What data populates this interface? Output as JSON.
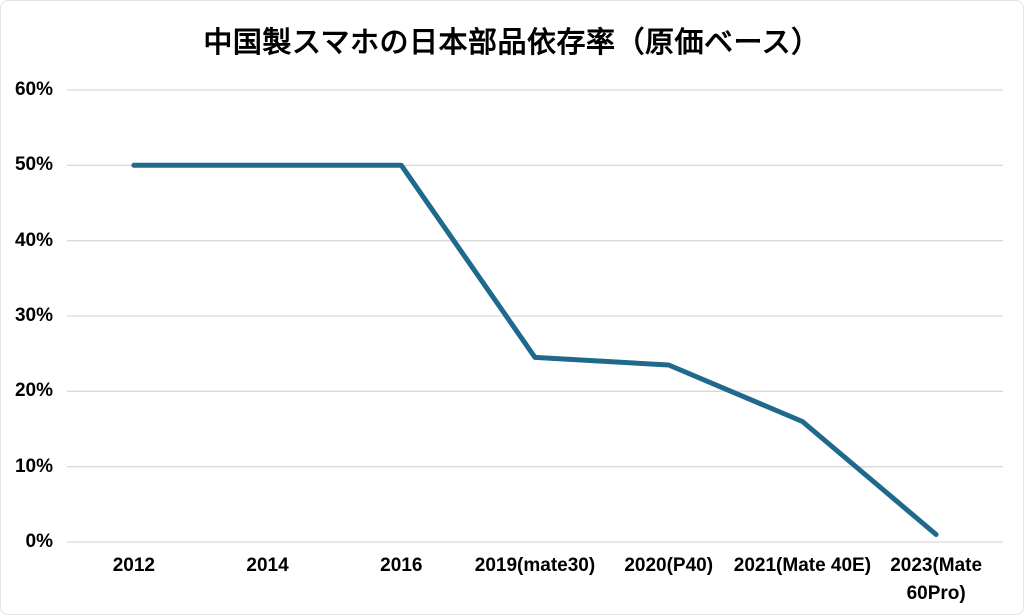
{
  "chart_data": {
    "type": "line",
    "title": "中国製スマホの日本部品依存率（原価ベース）",
    "categories": [
      "2012",
      "2014",
      "2016",
      "2019(mate30)",
      "2020(P40)",
      "2021(Mate 40E)",
      "2023(Mate 60Pro)"
    ],
    "values": [
      50,
      50,
      50,
      24.5,
      23.5,
      16,
      1
    ],
    "ylim": [
      0,
      60
    ],
    "yticks": [
      60,
      50,
      40,
      30,
      20,
      10,
      0
    ],
    "ytick_labels": [
      "60%",
      "50%",
      "40%",
      "30%",
      "20%",
      "10%",
      "0%"
    ],
    "xlabel": "",
    "ylabel": "",
    "grid": true,
    "legend": false,
    "xtick_wrap_index": 6,
    "colors": {
      "line": "#1F6A8C",
      "gridline": "#D9D9D9",
      "text": "#000000",
      "background": "#FFFFFF"
    }
  }
}
